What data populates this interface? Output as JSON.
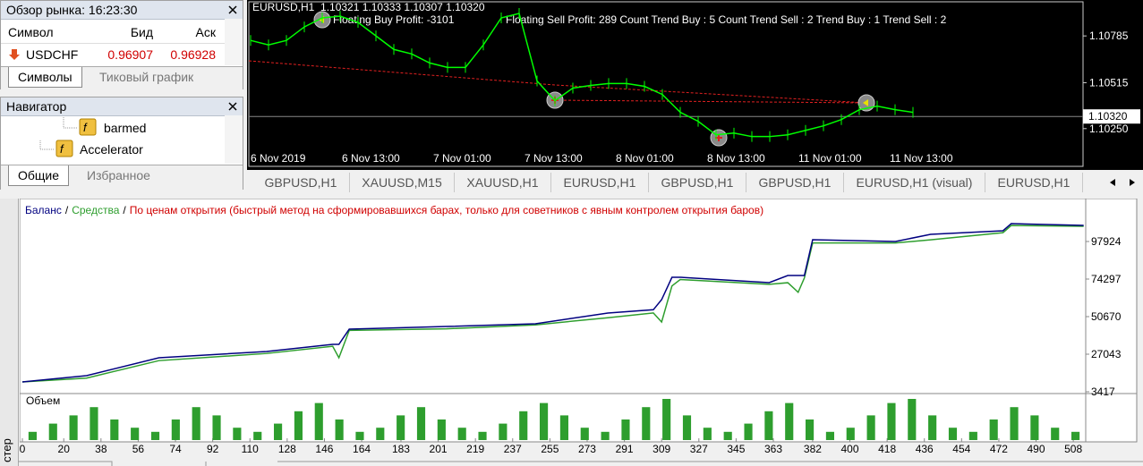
{
  "market_watch": {
    "title": "Обзор рынка: 16:23:30",
    "columns": [
      "Символ",
      "Бид",
      "Аск"
    ],
    "rows": [
      [
        "USDCHF",
        "0.96907",
        "0.96928"
      ]
    ],
    "tabs": [
      "Символы",
      "Тиковый график"
    ]
  },
  "navigator": {
    "title": "Навигатор",
    "items": [
      "barmed",
      "Accelerator"
    ],
    "tabs": [
      "Общие",
      "Избранное"
    ]
  },
  "price_chart": {
    "type": "line",
    "title": "EURUSD,H1  1.10321 1.10333 1.10307 1.10320",
    "annotations": [
      "Floating Buy Profit: -3101",
      "Floating Sell Profit: 289 Count Trend Buy : 5 Count Trend Sell : 2 Trend Buy : 1 Trend Sell : 2"
    ],
    "categories": [
      "6 Nov 2019",
      "6 Nov 13:00",
      "7 Nov 01:00",
      "7 Nov 13:00",
      "8 Nov 01:00",
      "8 Nov 13:00",
      "11 Nov 01:00",
      "11 Nov 13:00"
    ],
    "values": [
      1.10759,
      1.10733,
      1.10759,
      1.10837,
      1.10889,
      1.10899,
      1.10863,
      1.10785,
      1.10707,
      1.10681,
      1.10629,
      1.10603,
      1.10603,
      1.10733,
      1.10889,
      1.10915,
      1.10525,
      1.10411,
      1.10484,
      1.10499,
      1.1051,
      1.1051,
      1.10494,
      1.10447,
      1.10344,
      1.10292,
      1.10214,
      1.10224,
      1.10204,
      1.10204,
      1.10214,
      1.1024,
      1.10266,
      1.10302,
      1.10359,
      1.1038,
      1.10359,
      1.10344
    ],
    "color": "#00ff00",
    "ylim": [
      1.10032,
      1.10982
    ],
    "yticks": [
      {
        "value": 1.10785,
        "label": "1.10785"
      },
      {
        "value": 1.10515,
        "label": "1.10515"
      },
      {
        "value": 1.1025,
        "label": "1.10250"
      }
    ],
    "current_price": {
      "value": 1.1032,
      "label": "1.10320"
    }
  },
  "chart_tabs": [
    "GBPUSD,H1",
    "XAUUSD,M15",
    "XAUUSD,H1",
    "EURUSD,H1",
    "GBPUSD,H1",
    "GBPUSD,H1",
    "EURUSD,H1 (visual)",
    "EURUSD,H1"
  ],
  "tester": {
    "type": "line",
    "legend_separator": "/",
    "subtitle": "По ценам открытия (быстрый метод на сформировавшихся барах, только для советников с явным контролем открытия баров)",
    "x": [
      0,
      31,
      66,
      118,
      150,
      153,
      158,
      205,
      248,
      283,
      305,
      309,
      314,
      318,
      361,
      370,
      375,
      378,
      382,
      422,
      439,
      474,
      478,
      513
    ],
    "series": [
      {
        "name": "Баланс",
        "color": "#000080",
        "values": [
          9605,
          13543,
          24793,
          28732,
          33232,
          33232,
          42795,
          44482,
          46170,
          52920,
          55000,
          61358,
          75422,
          75422,
          72046,
          76546,
          76546,
          76546,
          99048,
          97923,
          102424,
          104674,
          109174,
          108049
        ]
      },
      {
        "name": "Средства",
        "color": "#2e9e2e",
        "values": [
          9605,
          12000,
          23000,
          27500,
          32000,
          24793,
          42000,
          43000,
          45500,
          50000,
          53000,
          47295,
          70000,
          74000,
          71000,
          72000,
          66000,
          75000,
          97000,
          97000,
          99000,
          103500,
          108000,
          107500
        ]
      }
    ],
    "xlim": [
      0,
      514
    ],
    "xticks": [
      0,
      20,
      38,
      56,
      74,
      92,
      110,
      128,
      146,
      164,
      183,
      201,
      219,
      237,
      255,
      273,
      291,
      309,
      327,
      345,
      363,
      382,
      400,
      418,
      436,
      454,
      472,
      490,
      508
    ],
    "ylim": [
      3417,
      122677
    ],
    "yticks": [
      97924,
      74297,
      50670,
      27043,
      3417
    ],
    "volume": {
      "label": "Объем",
      "color": "#2e9e2e",
      "ylim": [
        0,
        10
      ],
      "values": [
        2,
        4,
        6,
        8,
        5,
        3,
        2,
        5,
        8,
        6,
        3,
        2,
        4,
        7,
        9,
        5,
        2,
        3,
        6,
        8,
        5,
        3,
        2,
        4,
        7,
        9,
        6,
        3,
        2,
        5,
        8,
        10,
        6,
        3,
        2,
        4,
        7,
        9,
        5,
        2,
        3,
        6,
        9,
        10,
        6,
        3,
        2,
        5,
        8,
        6,
        3,
        2
      ]
    }
  },
  "side_label": "стер"
}
